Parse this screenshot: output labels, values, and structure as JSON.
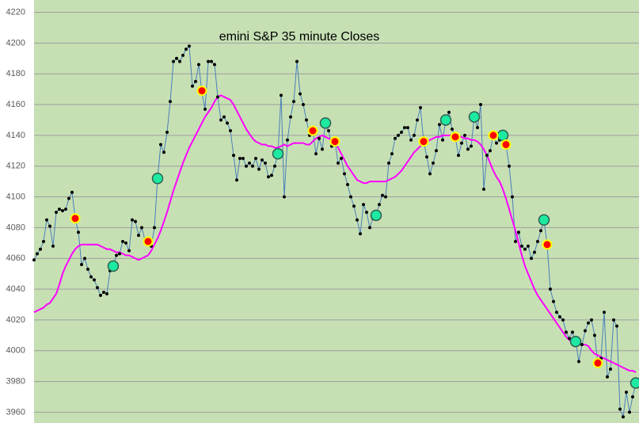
{
  "chart_data": {
    "type": "line",
    "title": "emini S&P 35 minute Closes",
    "ylim": [
      3953,
      4228
    ],
    "yticks": [
      3960,
      3980,
      4000,
      4020,
      4040,
      4060,
      4080,
      4100,
      4120,
      4140,
      4160,
      4180,
      4200,
      4220
    ],
    "grid": true,
    "series": [
      {
        "color": "#4a7ebb",
        "marker_color": "#000000",
        "values": [
          4059,
          4063,
          4066,
          4071,
          4085,
          4081,
          4068,
          4090,
          4092,
          4091,
          4092,
          4099,
          4103,
          4086,
          4077,
          4056,
          4060,
          4053,
          4048,
          4046,
          4041,
          4036,
          4038,
          4037,
          4052,
          4055,
          4062,
          4063,
          4071,
          4070,
          4065,
          4085,
          4084,
          4075,
          4080,
          4072,
          4071,
          4068,
          4080,
          4112,
          4134,
          4129,
          4142,
          4162,
          4188,
          4190,
          4188,
          4192,
          4196,
          4198,
          4172,
          4175,
          4186,
          4168,
          4157,
          4188,
          4188,
          4186,
          4165,
          4150,
          4152,
          4148,
          4143,
          4127,
          4111,
          4125,
          4125,
          4120,
          4122,
          4120,
          4125,
          4118,
          4124,
          4122,
          4113,
          4114,
          4120,
          4128,
          4166,
          4100,
          4137,
          4152,
          4162,
          4188,
          4167,
          4160,
          4150,
          4140,
          4143,
          4128,
          4138,
          4131,
          4148,
          4143,
          4133,
          4136,
          4122,
          4125,
          4115,
          4108,
          4100,
          4094,
          4085,
          4076,
          4095,
          4090,
          4080,
          4086,
          4088,
          4095,
          4101,
          4100,
          4122,
          4128,
          4138,
          4140,
          4142,
          4145,
          4145,
          4137,
          4140,
          4150,
          4158,
          4136,
          4126,
          4115,
          4122,
          4130,
          4147,
          4137,
          4150,
          4155,
          4144,
          4139,
          4127,
          4135,
          4140,
          4131,
          4133,
          4152,
          4145,
          4160,
          4105,
          4127,
          4130,
          4140,
          4135,
          4137,
          4140,
          4134,
          4120,
          4100,
          4071,
          4077,
          4068,
          4066,
          4068,
          4060,
          4064,
          4071,
          4078,
          4085,
          4069,
          4040,
          4032,
          4025,
          4022,
          4020,
          4012,
          4008,
          4012,
          4006,
          3993,
          4004,
          4013,
          4018,
          4020,
          4010,
          3992,
          3995,
          4025,
          3983,
          3988,
          4020,
          4016,
          3962,
          3957,
          3973,
          3960,
          3970,
          3979
        ]
      },
      {
        "color": "#ff00ff",
        "values": [
          4025,
          4026,
          4027,
          4028,
          4030,
          4031,
          4034,
          4037,
          4043,
          4050,
          4055,
          4059,
          4063,
          4066,
          4068,
          4069,
          4069,
          4069,
          4069,
          4069,
          4069,
          4068,
          4067,
          4066,
          4066,
          4065,
          4064,
          4064,
          4063,
          4062,
          4062,
          4061,
          4060,
          4059,
          4060,
          4061,
          4062,
          4065,
          4069,
          4073,
          4078,
          4084,
          4090,
          4097,
          4104,
          4110,
          4116,
          4122,
          4127,
          4132,
          4136,
          4140,
          4144,
          4148,
          4152,
          4155,
          4158,
          4162,
          4165,
          4166,
          4165,
          4164,
          4163,
          4160,
          4156,
          4152,
          4148,
          4144,
          4141,
          4138,
          4136,
          4135,
          4134,
          4134,
          4133,
          4133,
          4132,
          4132,
          4133,
          4134,
          4133,
          4134,
          4135,
          4135,
          4135,
          4135,
          4134,
          4134,
          4136,
          4138,
          4139,
          4140,
          4139,
          4138,
          4137,
          4135,
          4132,
          4128,
          4124,
          4120,
          4117,
          4114,
          4111,
          4110,
          4109,
          4109,
          4110,
          4110,
          4110,
          4110,
          4110,
          4110,
          4111,
          4112,
          4113,
          4115,
          4117,
          4120,
          4123,
          4126,
          4129,
          4131,
          4133,
          4135,
          4136,
          4137,
          4138,
          4139,
          4139,
          4140,
          4140,
          4140,
          4140,
          4140,
          4139,
          4139,
          4138,
          4138,
          4137,
          4137,
          4136,
          4134,
          4131,
          4127,
          4122,
          4117,
          4113,
          4110,
          4105,
          4099,
          4092,
          4085,
          4078,
          4070,
          4062,
          4055,
          4050,
          4045,
          4040,
          4036,
          4033,
          4030,
          4027,
          4024,
          4021,
          4018,
          4015,
          4012,
          4009,
          4007,
          4005,
          4005,
          4004,
          4004,
          4004,
          4003,
          4000,
          3998,
          3997,
          3996,
          3995,
          3994,
          3993,
          3992,
          3991,
          3990,
          3989,
          3988,
          3987,
          3987,
          3986
        ]
      },
      {
        "color": "#1de9a0",
        "marker": "circle",
        "values": [
          null,
          null,
          null,
          null,
          null,
          null,
          null,
          null,
          null,
          null,
          null,
          null,
          null,
          null,
          null,
          null,
          null,
          null,
          null,
          null,
          null,
          null,
          null,
          null,
          null,
          4055,
          null,
          null,
          null,
          null,
          null,
          null,
          null,
          null,
          null,
          null,
          null,
          null,
          null,
          4112,
          null,
          null,
          null,
          null,
          null,
          null,
          null,
          null,
          null,
          null,
          null,
          null,
          null,
          null,
          null,
          null,
          null,
          null,
          null,
          null,
          null,
          null,
          null,
          null,
          null,
          null,
          null,
          null,
          null,
          null,
          null,
          null,
          null,
          null,
          null,
          null,
          null,
          4128,
          null,
          null,
          null,
          null,
          null,
          null,
          null,
          null,
          null,
          null,
          null,
          null,
          null,
          null,
          4148,
          null,
          null,
          null,
          null,
          null,
          null,
          null,
          null,
          null,
          null,
          null,
          null,
          null,
          null,
          null,
          4088,
          null,
          null,
          null,
          null,
          null,
          null,
          null,
          null,
          null,
          null,
          null,
          null,
          null,
          null,
          null,
          null,
          null,
          null,
          null,
          null,
          null,
          4150,
          null,
          null,
          null,
          null,
          null,
          null,
          null,
          null,
          4152,
          null,
          null,
          null,
          null,
          null,
          null,
          null,
          null,
          4140,
          null,
          null,
          null,
          null,
          null,
          null,
          null,
          null,
          null,
          null,
          null,
          null,
          4085,
          null,
          null,
          null,
          null,
          null,
          null,
          null,
          null,
          null,
          4006,
          null,
          null,
          null,
          null,
          null,
          null,
          null,
          null,
          null,
          null,
          null,
          null,
          null,
          null,
          null,
          null,
          null,
          null,
          3979
        ]
      },
      {
        "color": "#ff0000",
        "marker": "circle",
        "edge_color": "#ffff00",
        "values": [
          null,
          null,
          null,
          null,
          null,
          null,
          null,
          null,
          null,
          null,
          null,
          null,
          null,
          4086,
          null,
          null,
          null,
          null,
          null,
          null,
          null,
          null,
          null,
          null,
          null,
          null,
          null,
          null,
          null,
          null,
          null,
          null,
          null,
          null,
          null,
          null,
          4071,
          null,
          null,
          null,
          null,
          null,
          null,
          null,
          null,
          null,
          null,
          null,
          null,
          null,
          null,
          null,
          null,
          4169,
          null,
          null,
          null,
          null,
          null,
          null,
          null,
          null,
          null,
          null,
          null,
          null,
          null,
          null,
          null,
          null,
          null,
          null,
          null,
          null,
          null,
          null,
          null,
          null,
          null,
          null,
          null,
          null,
          null,
          null,
          null,
          null,
          null,
          null,
          4143,
          null,
          null,
          null,
          null,
          null,
          null,
          4136,
          null,
          null,
          null,
          null,
          null,
          null,
          null,
          null,
          null,
          null,
          null,
          null,
          null,
          null,
          null,
          null,
          null,
          null,
          null,
          null,
          null,
          null,
          null,
          null,
          null,
          null,
          null,
          4136,
          null,
          null,
          null,
          null,
          null,
          null,
          null,
          null,
          null,
          4139,
          null,
          null,
          null,
          null,
          null,
          null,
          null,
          null,
          null,
          null,
          null,
          4140,
          null,
          null,
          null,
          4134,
          null,
          null,
          null,
          null,
          null,
          null,
          null,
          null,
          null,
          null,
          null,
          null,
          4069,
          null,
          null,
          null,
          null,
          null,
          null,
          null,
          null,
          null,
          null,
          null,
          null,
          null,
          null,
          null,
          3992,
          null,
          null,
          null,
          null,
          null,
          null,
          null,
          null,
          null,
          null,
          null,
          null
        ]
      }
    ]
  }
}
